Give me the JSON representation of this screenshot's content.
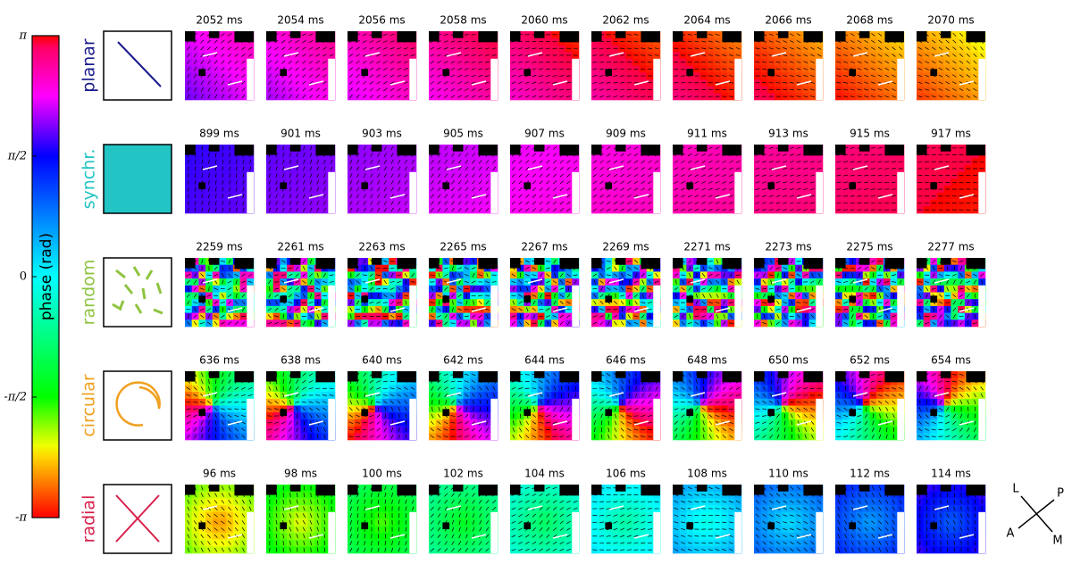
{
  "colorbar": {
    "label": "phase (rad)",
    "lim": [
      -3.14159,
      3.14159
    ],
    "ticks": [
      {
        "value": 3.14159,
        "label": "π"
      },
      {
        "value": 1.5708,
        "label": "π/2"
      },
      0,
      {
        "value": -1.5708,
        "label": "-π/2"
      },
      {
        "value": -3.14159,
        "label": "-π"
      }
    ]
  },
  "rows": [
    {
      "label": "planar",
      "color": "#1a1a8c",
      "times": [
        "2052 ms",
        "2054 ms",
        "2056 ms",
        "2058 ms",
        "2060 ms",
        "2062 ms",
        "2064 ms",
        "2066 ms",
        "2068 ms",
        "2070 ms"
      ]
    },
    {
      "label": "synchr.",
      "color": "#22c4c4",
      "times": [
        "899 ms",
        "901 ms",
        "903 ms",
        "905 ms",
        "907 ms",
        "909 ms",
        "911 ms",
        "913 ms",
        "915 ms",
        "917 ms"
      ]
    },
    {
      "label": "random",
      "color": "#8fc440",
      "times": [
        "2259 ms",
        "2261 ms",
        "2263 ms",
        "2265 ms",
        "2267 ms",
        "2269 ms",
        "2271 ms",
        "2273 ms",
        "2275 ms",
        "2277 ms"
      ]
    },
    {
      "label": "circular",
      "color": "#f0a020",
      "times": [
        "636 ms",
        "638 ms",
        "640 ms",
        "642 ms",
        "644 ms",
        "646 ms",
        "648 ms",
        "650 ms",
        "652 ms",
        "654 ms"
      ]
    },
    {
      "label": "radial",
      "color": "#d8204a",
      "times": [
        "96 ms",
        "98 ms",
        "100 ms",
        "102 ms",
        "104 ms",
        "106 ms",
        "108 ms",
        "110 ms",
        "112 ms",
        "114 ms"
      ]
    }
  ],
  "orientation": {
    "labels": [
      "L",
      "P",
      "A",
      "M"
    ]
  }
}
